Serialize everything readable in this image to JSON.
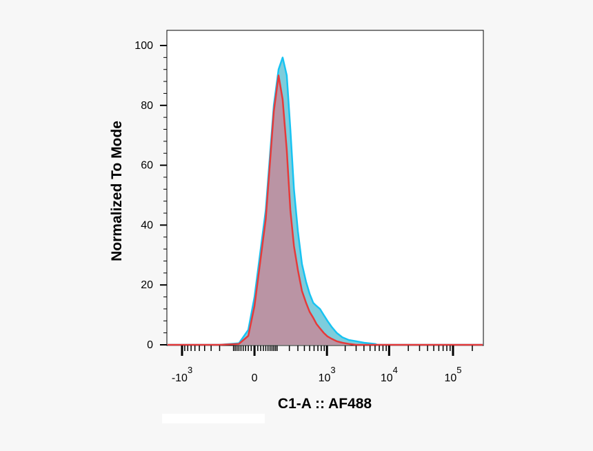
{
  "chart_data": {
    "type": "area",
    "xlabel": "C1-A :: AF488",
    "ylabel": "Normalized To Mode",
    "ylim": [
      0,
      100
    ],
    "y_ticks": [
      "0",
      "20",
      "40",
      "60",
      "80",
      "100"
    ],
    "x_scale": "biexponential",
    "x_tick_labels": [
      {
        "base": "-10",
        "exp": "3",
        "value": -1000
      },
      {
        "base": "0",
        "exp": "",
        "value": 0
      },
      {
        "base": "10",
        "exp": "3",
        "value": 1000
      },
      {
        "base": "10",
        "exp": "4",
        "value": 10000
      },
      {
        "base": "10",
        "exp": "5",
        "value": 100000
      }
    ],
    "grid": false,
    "series": [
      {
        "color": "#17c3f2",
        "fill": "#6fc8d8",
        "points": [
          [
            -200,
            0
          ],
          [
            -60,
            0.5
          ],
          [
            -20,
            5
          ],
          [
            0,
            16
          ],
          [
            40,
            45
          ],
          [
            80,
            80
          ],
          [
            110,
            92
          ],
          [
            140,
            96
          ],
          [
            175,
            90
          ],
          [
            210,
            72
          ],
          [
            250,
            52
          ],
          [
            300,
            38
          ],
          [
            360,
            27
          ],
          [
            430,
            21
          ],
          [
            500,
            17
          ],
          [
            580,
            14
          ],
          [
            660,
            13
          ],
          [
            760,
            12
          ],
          [
            880,
            10
          ],
          [
            1020,
            8
          ],
          [
            1200,
            6
          ],
          [
            1450,
            4
          ],
          [
            1800,
            2.5
          ],
          [
            2300,
            1.6
          ],
          [
            3000,
            1.2
          ],
          [
            4000,
            0.7
          ],
          [
            6000,
            0.3
          ],
          [
            6500,
            0
          ]
        ]
      },
      {
        "color": "#e63a3a",
        "fill": "#c48a9a",
        "points": [
          [
            -200,
            0
          ],
          [
            -60,
            0.3
          ],
          [
            -20,
            3
          ],
          [
            0,
            13
          ],
          [
            40,
            42
          ],
          [
            80,
            78
          ],
          [
            110,
            90
          ],
          [
            140,
            82
          ],
          [
            175,
            65
          ],
          [
            210,
            45
          ],
          [
            250,
            33
          ],
          [
            300,
            25
          ],
          [
            360,
            18
          ],
          [
            430,
            14
          ],
          [
            500,
            11
          ],
          [
            580,
            9
          ],
          [
            660,
            7
          ],
          [
            760,
            5.5
          ],
          [
            880,
            4
          ],
          [
            1020,
            2.8
          ],
          [
            1200,
            2
          ],
          [
            1450,
            1.2
          ],
          [
            1800,
            0.7
          ],
          [
            2300,
            0.3
          ],
          [
            3000,
            0
          ]
        ]
      }
    ]
  }
}
